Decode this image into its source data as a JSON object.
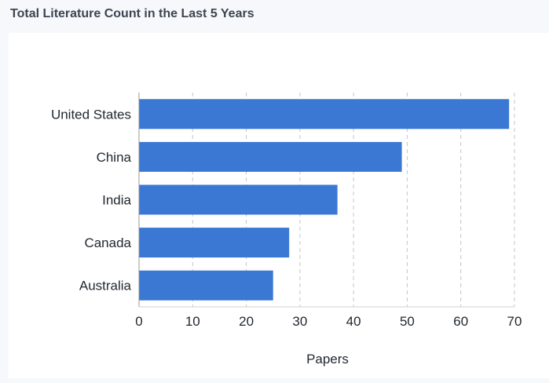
{
  "panel": {
    "title": "Total Literature Count in the Last 5 Years"
  },
  "chart_data": {
    "type": "bar",
    "orientation": "horizontal",
    "categories": [
      "United States",
      "China",
      "India",
      "Canada",
      "Australia"
    ],
    "values": [
      69,
      49,
      37,
      28,
      25
    ],
    "xlabel": "Papers",
    "ylabel": "",
    "xlim": [
      0,
      70
    ],
    "xticks": [
      0,
      10,
      20,
      30,
      40,
      50,
      60,
      70
    ],
    "grid": "vertical-dashed",
    "bar_color": "#3a78d4"
  }
}
